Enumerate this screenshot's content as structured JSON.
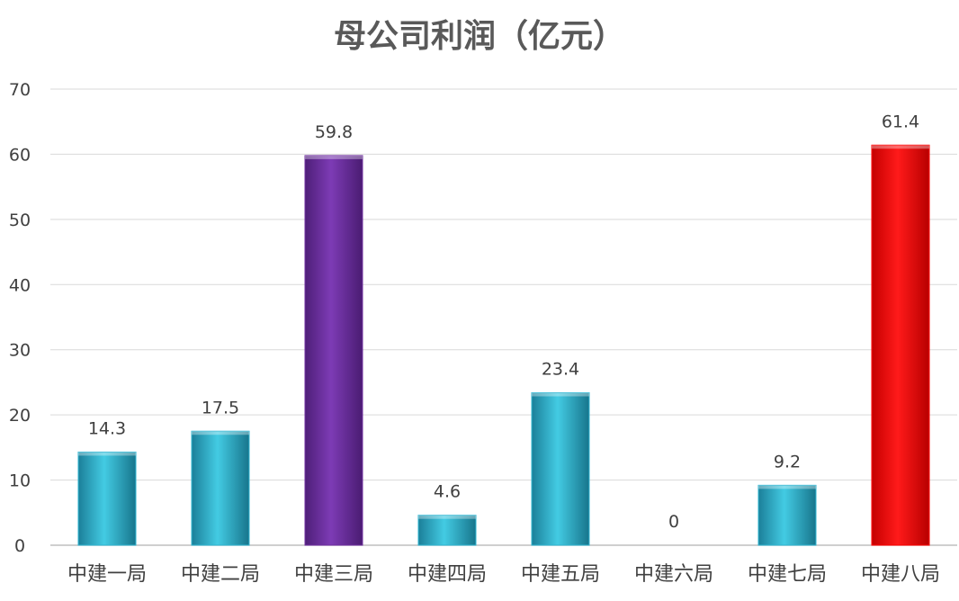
{
  "chart_data": {
    "type": "bar",
    "title": "母公司利润（亿元）",
    "xlabel": "",
    "ylabel": "",
    "categories": [
      "中建一局",
      "中建二局",
      "中建三局",
      "中建四局",
      "中建五局",
      "中建六局",
      "中建七局",
      "中建八局"
    ],
    "values": [
      14.3,
      17.5,
      59.8,
      4.6,
      23.4,
      0,
      9.2,
      61.4
    ],
    "value_labels": [
      "14.3",
      "17.5",
      "59.8",
      "4.6",
      "23.4",
      "0",
      "9.2",
      "61.4"
    ],
    "ylim": [
      0,
      70
    ],
    "yticks": [
      0,
      10,
      20,
      30,
      40,
      50,
      60,
      70
    ],
    "grid": true,
    "legend": "none",
    "bar_colors": [
      "#2eb6d2",
      "#2eb6d2",
      "#7030a0",
      "#2eb6d2",
      "#2eb6d2",
      "#2eb6d2",
      "#2eb6d2",
      "#ff0000"
    ]
  }
}
